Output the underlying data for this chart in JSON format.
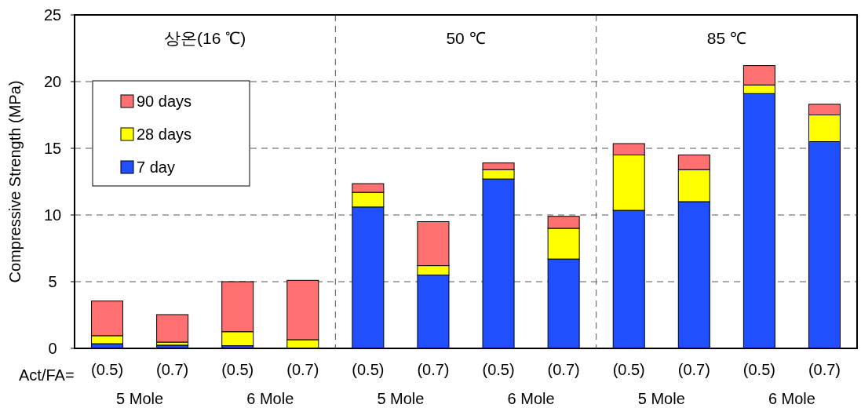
{
  "chart_data": {
    "type": "bar",
    "stacked": true,
    "ylabel": "Compressive Strength (MPa)",
    "categories": [
      "(0.5)",
      "(0.7)",
      "(0.5)",
      "(0.7)",
      "(0.5)",
      "(0.7)",
      "(0.5)",
      "(0.7)",
      "(0.5)",
      "(0.7)",
      "(0.5)",
      "(0.7)"
    ],
    "series": [
      {
        "name": "7 day",
        "color": "#1f4fff",
        "values": [
          0.35,
          0.24,
          0.2,
          0,
          10.6,
          5.5,
          12.7,
          6.7,
          10.35,
          11.0,
          19.1,
          15.5
        ]
      },
      {
        "name": "28 days",
        "color": "#ffff00",
        "values": [
          0.6,
          0.23,
          1.05,
          0.65,
          1.1,
          0.7,
          0.7,
          2.3,
          4.15,
          2.4,
          0.65,
          2.0
        ]
      },
      {
        "name": "90 days",
        "color": "#ff7070",
        "values": [
          2.6,
          2.06,
          3.75,
          4.45,
          0.65,
          3.3,
          0.5,
          0.9,
          0.85,
          1.1,
          1.45,
          0.8
        ]
      }
    ],
    "ylim": [
      0,
      25
    ],
    "yticks": [
      0,
      5,
      10,
      15,
      20,
      25
    ],
    "grid": "y",
    "legend": "top left",
    "annotations": [
      "상온(16 ℃)",
      "50 ℃",
      "85 ℃",
      "Act/FA=",
      "5 Mole",
      "6 Mole",
      "5 Mole",
      "6 Mole",
      "5 Mole",
      "6 Mole"
    ]
  }
}
